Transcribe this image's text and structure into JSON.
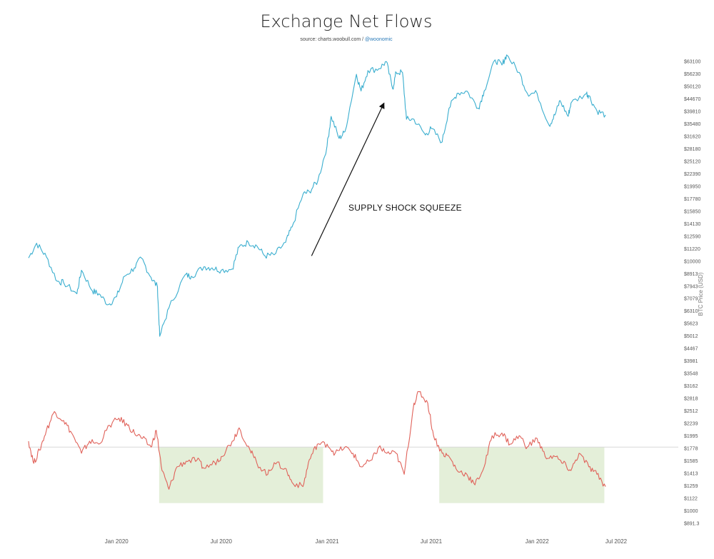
{
  "title": "Exchange Net Flows",
  "subtitle": {
    "source": "source: charts.woobull.com / ",
    "handle": "@woonomic"
  },
  "colors": {
    "price_line": "#3aaecf",
    "flow_line": "#e0625a",
    "shade": "#e4efd9",
    "baseline": "#d8d8d8",
    "arrow": "#111111"
  },
  "chart_data": {
    "type": "line",
    "title": "Exchange Net Flows",
    "ylabel": "BTC Price (USD)",
    "y_scale": "log",
    "ylim": [
      891.3,
      63100
    ],
    "xlim": [
      "2019-08-01",
      "2022-07-01"
    ],
    "x_ticks": [
      "Jan 2020",
      "Jul 2020",
      "Jan 2021",
      "Jul 2021",
      "Jan 2022",
      "Jul 2022"
    ],
    "y_ticks": [
      "$63100",
      "$56230",
      "$50120",
      "$44670",
      "$39810",
      "$35480",
      "$31620",
      "$28180",
      "$25120",
      "$22390",
      "$19950",
      "$17780",
      "$15850",
      "$14130",
      "$12590",
      "$11220",
      "$10000",
      "$8913",
      "$7943",
      "$7079",
      "$6310",
      "$5623",
      "$5012",
      "$4467",
      "$3981",
      "$3548",
      "$3162",
      "$2818",
      "$2512",
      "$2239",
      "$1995",
      "$1778",
      "$1585",
      "$1413",
      "$1259",
      "$1122",
      "$1000",
      "$891.3"
    ],
    "series": [
      {
        "name": "BTC Price",
        "x": [
          "2019-08-01",
          "2019-08-15",
          "2019-09-01",
          "2019-09-20",
          "2019-10-01",
          "2019-10-24",
          "2019-11-01",
          "2019-11-20",
          "2019-12-01",
          "2019-12-18",
          "2020-01-01",
          "2020-01-15",
          "2020-02-01",
          "2020-02-13",
          "2020-03-01",
          "2020-03-12",
          "2020-03-16",
          "2020-04-01",
          "2020-04-29",
          "2020-05-10",
          "2020-06-01",
          "2020-06-15",
          "2020-07-01",
          "2020-07-20",
          "2020-08-01",
          "2020-08-17",
          "2020-09-01",
          "2020-09-15",
          "2020-10-01",
          "2020-10-21",
          "2020-11-01",
          "2020-11-20",
          "2020-12-01",
          "2020-12-16",
          "2021-01-01",
          "2021-01-08",
          "2021-01-22",
          "2021-02-01",
          "2021-02-21",
          "2021-03-01",
          "2021-03-13",
          "2021-04-01",
          "2021-04-14",
          "2021-04-25",
          "2021-05-01",
          "2021-05-12",
          "2021-05-19",
          "2021-06-01",
          "2021-06-21",
          "2021-07-01",
          "2021-07-20",
          "2021-08-01",
          "2021-08-15",
          "2021-09-01",
          "2021-09-21",
          "2021-10-01",
          "2021-10-20",
          "2021-11-01",
          "2021-11-09",
          "2021-12-01",
          "2021-12-15",
          "2022-01-01",
          "2022-01-22",
          "2022-02-01",
          "2022-02-10",
          "2022-02-24",
          "2022-03-01",
          "2022-03-28",
          "2022-04-01",
          "2022-04-15",
          "2022-04-30"
        ],
        "y": [
          10300,
          11800,
          10400,
          8300,
          8200,
          7400,
          9200,
          7600,
          7400,
          6700,
          7200,
          8700,
          9400,
          10300,
          8600,
          7900,
          5000,
          6500,
          8800,
          8700,
          9500,
          9400,
          9200,
          9300,
          11400,
          11900,
          11500,
          10500,
          10600,
          11900,
          13700,
          18500,
          19000,
          21000,
          29000,
          38000,
          31000,
          33000,
          56000,
          48000,
          58000,
          59000,
          63000,
          49000,
          57000,
          57000,
          37000,
          37000,
          32000,
          34000,
          30000,
          41000,
          47000,
          48000,
          41000,
          48000,
          64000,
          61000,
          67000,
          57000,
          47000,
          47000,
          35000,
          38500,
          44000,
          38000,
          43000,
          47000,
          46000,
          40000,
          38500
        ]
      },
      {
        "name": "Exchange Net Flows",
        "x": [
          "2019-08-01",
          "2019-08-10",
          "2019-08-20",
          "2019-09-01",
          "2019-09-15",
          "2019-10-01",
          "2019-10-15",
          "2019-11-01",
          "2019-11-15",
          "2019-12-01",
          "2019-12-20",
          "2020-01-05",
          "2020-01-20",
          "2020-02-01",
          "2020-02-15",
          "2020-03-01",
          "2020-03-10",
          "2020-03-20",
          "2020-04-01",
          "2020-04-15",
          "2020-05-01",
          "2020-05-20",
          "2020-06-01",
          "2020-06-20",
          "2020-07-01",
          "2020-07-20",
          "2020-08-01",
          "2020-08-20",
          "2020-09-01",
          "2020-09-20",
          "2020-10-01",
          "2020-10-20",
          "2020-11-01",
          "2020-11-20",
          "2020-12-01",
          "2020-12-15",
          "2021-01-01",
          "2021-01-15",
          "2021-02-01",
          "2021-02-15",
          "2021-03-01",
          "2021-03-20",
          "2021-04-01",
          "2021-04-15",
          "2021-05-01",
          "2021-05-15",
          "2021-06-01",
          "2021-06-10",
          "2021-06-25",
          "2021-07-05",
          "2021-07-20",
          "2021-08-01",
          "2021-08-15",
          "2021-09-01",
          "2021-09-15",
          "2021-10-01",
          "2021-10-15",
          "2021-11-01",
          "2021-11-15",
          "2021-12-01",
          "2021-12-15",
          "2022-01-01",
          "2022-01-15",
          "2022-02-01",
          "2022-02-15",
          "2022-03-01",
          "2022-03-15",
          "2022-04-01",
          "2022-04-15",
          "2022-04-30"
        ],
        "y": [
          1900,
          1550,
          1750,
          2100,
          2500,
          2300,
          2050,
          1700,
          1900,
          1850,
          2200,
          2350,
          2200,
          2050,
          1950,
          1800,
          2100,
          1450,
          1220,
          1500,
          1580,
          1600,
          1480,
          1560,
          1650,
          1900,
          2150,
          1750,
          1550,
          1400,
          1560,
          1480,
          1300,
          1250,
          1600,
          1850,
          1850,
          1700,
          1800,
          1700,
          1500,
          1600,
          1800,
          1700,
          1700,
          1400,
          2700,
          3000,
          2700,
          2000,
          1700,
          1650,
          1450,
          1400,
          1270,
          1500,
          2000,
          2050,
          1850,
          2000,
          1800,
          1950,
          1650,
          1650,
          1550,
          1450,
          1700,
          1500,
          1400,
          1250
        ]
      }
    ],
    "baseline_value": 1800,
    "shaded_regions": [
      {
        "start": "2020-03-15",
        "end": "2020-12-25",
        "y_range": [
          1074,
          1800
        ]
      },
      {
        "start": "2021-07-15",
        "end": "2022-04-28",
        "y_range": [
          1074,
          1800
        ]
      }
    ],
    "annotation": {
      "text": "SUPPLY SHOCK SQUEEZE",
      "arrow_from": [
        "2020-12-05",
        10500
      ],
      "arrow_to": [
        "2021-04-10",
        43000
      ]
    }
  }
}
